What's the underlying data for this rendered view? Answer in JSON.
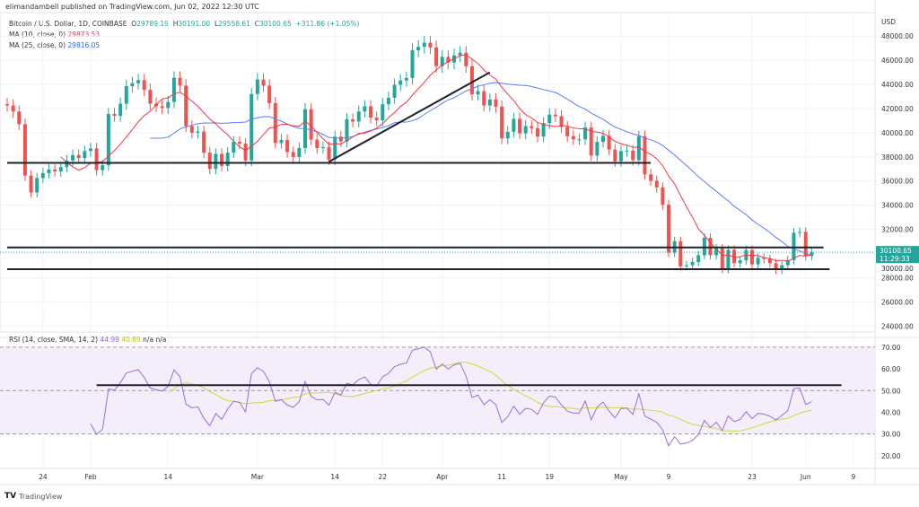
{
  "header": {
    "published": "elimandambell published on TradingView.com, Jun 02, 2022 12:30 UTC"
  },
  "legend": {
    "symbol": "Bitcoin / U.S. Dollar, 1D, COINBASE",
    "o_label": "O",
    "o": "29789.19",
    "h_label": "H",
    "h": "30191.00",
    "l_label": "L",
    "l": "29558.61",
    "c_label": "C",
    "c": "30100.65",
    "change": "+311.86 (+1.05%)",
    "ma10_label": "MA (10, close, 0)",
    "ma10_value": "29873.53",
    "ma25_label": "MA (25, close, 0)",
    "ma25_value": "29816.05",
    "rsi_label": "RSI (14, close, SMA, 14, 2)",
    "rsi_value": "44.99",
    "rsi_sma_value": "40.89",
    "na1": "n/a",
    "na2": "n/a"
  },
  "price_axis": {
    "currency": "USD",
    "last_price": "30100.65",
    "countdown": "11:29:33"
  },
  "footer": {
    "logo_text": "TradingView"
  },
  "colors": {
    "up": "#26a69a",
    "down": "#ef5350",
    "ma10": "#f23645",
    "ma25": "#5b7cf7",
    "rsi": "#9c6fd6",
    "rsi_sma": "#cddc39",
    "rsi_band": "#f3eefa"
  },
  "chart_data": {
    "type": "candlestick",
    "start_date": "2022-01-18",
    "interval": "1D",
    "first_open": 42370,
    "close": [
      42250,
      41750,
      40700,
      36450,
      35050,
      36250,
      36650,
      36950,
      36800,
      37150,
      37700,
      38150,
      37900,
      38480,
      38700,
      36900,
      37300,
      41550,
      41400,
      42400,
      43850,
      44100,
      44350,
      43550,
      42400,
      42200,
      42050,
      42550,
      44550,
      43900,
      40550,
      40000,
      40100,
      38350,
      37000,
      38250,
      37250,
      38350,
      39250,
      39100,
      37700,
      43200,
      44400,
      43900,
      42450,
      39150,
      39400,
      38400,
      37990,
      38730,
      41940,
      39430,
      38730,
      38800,
      37780,
      39670,
      39280,
      41110,
      40920,
      41760,
      42190,
      41250,
      41020,
      42360,
      42890,
      43960,
      44330,
      44530,
      46820,
      47110,
      47450,
      47060,
      45510,
      46280,
      45810,
      46400,
      46620,
      45500,
      43170,
      43440,
      42250,
      42750,
      42160,
      39530,
      40080,
      41150,
      39940,
      40550,
      40380,
      39680,
      40800,
      41500,
      41370,
      40480,
      39710,
      39450,
      39450,
      40430,
      38110,
      39240,
      39740,
      38600,
      37630,
      38470,
      38520,
      37720,
      39700,
      36550,
      36020,
      35470,
      34040,
      30070,
      31020,
      28940,
      29030,
      29300,
      29860,
      31300,
      29860,
      30420,
      28700,
      30310,
      29200,
      29430,
      30290,
      29100,
      29650,
      29540,
      29200,
      28630,
      29030,
      29460,
      31720,
      31790,
      29790,
      30100.65
    ],
    "y_ticks": [
      24000,
      26000,
      28000,
      30000,
      32000,
      34000,
      36000,
      38000,
      40000,
      42000,
      44000,
      46000,
      48000
    ],
    "ylim": [
      23500,
      49500
    ],
    "x_ticks": [
      {
        "label": "24",
        "date": "2022-01-24"
      },
      {
        "label": "Feb",
        "date": "2022-02-01"
      },
      {
        "label": "14",
        "date": "2022-02-14"
      },
      {
        "label": "Mar",
        "date": "2022-03-01"
      },
      {
        "label": "14",
        "date": "2022-03-14"
      },
      {
        "label": "22",
        "date": "2022-03-22"
      },
      {
        "label": "Apr",
        "date": "2022-04-01"
      },
      {
        "label": "11",
        "date": "2022-04-11"
      },
      {
        "label": "19",
        "date": "2022-04-19"
      },
      {
        "label": "May",
        "date": "2022-05-01"
      },
      {
        "label": "9",
        "date": "2022-05-09"
      },
      {
        "label": "23",
        "date": "2022-05-23"
      },
      {
        "label": "Jun",
        "date": "2022-06-01"
      },
      {
        "label": "9",
        "date": "2022-06-09"
      }
    ],
    "drawings": [
      {
        "type": "horizontal",
        "price": 37500,
        "from": "2022-01-18",
        "to": "2022-05-06"
      },
      {
        "type": "horizontal",
        "price": 30500,
        "from": "2022-01-18",
        "to": "2022-06-04"
      },
      {
        "type": "horizontal",
        "price": 28700,
        "from": "2022-01-18",
        "to": "2022-06-05"
      },
      {
        "type": "trend",
        "from": "2022-03-13",
        "from_price": 37600,
        "to": "2022-04-09",
        "to_price": 45000
      }
    ],
    "rsi": {
      "period": 14,
      "sma": 14,
      "y_ticks": [
        20,
        30,
        40,
        50,
        60,
        70
      ],
      "ylim": [
        15,
        72
      ],
      "bands": [
        30,
        50,
        70
      ],
      "drawing": {
        "value": 52.5,
        "from": "2022-02-02",
        "to": "2022-06-07"
      }
    }
  }
}
